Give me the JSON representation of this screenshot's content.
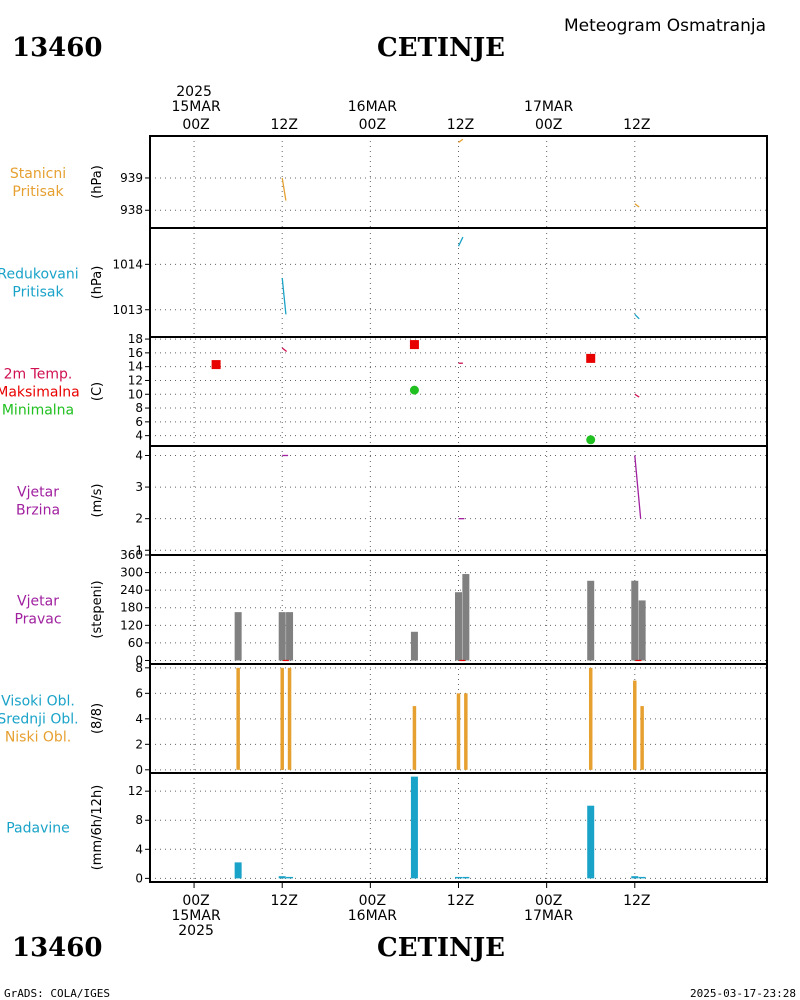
{
  "header": {
    "station_id": "13460",
    "station_name": "CETINJE",
    "product": "Meteogram Osmatranja"
  },
  "footer": {
    "credit": "GrADS: COLA/IGES",
    "timestamp": "2025-03-17-23:28"
  },
  "time_axis": {
    "range_hours": [
      -6,
      78
    ],
    "top_labels": [
      {
        "hour": 0,
        "lines": [
          "2025",
          "15MAR",
          "00Z"
        ]
      },
      {
        "hour": 12,
        "lines": [
          "12Z"
        ]
      },
      {
        "hour": 24,
        "lines": [
          "16MAR",
          "00Z"
        ]
      },
      {
        "hour": 36,
        "lines": [
          "12Z"
        ]
      },
      {
        "hour": 48,
        "lines": [
          "17MAR",
          "00Z"
        ]
      },
      {
        "hour": 60,
        "lines": [
          "12Z"
        ]
      }
    ],
    "bottom_labels": [
      {
        "hour": 0,
        "lines": [
          "00Z",
          "15MAR",
          "2025"
        ]
      },
      {
        "hour": 12,
        "lines": [
          "12Z"
        ]
      },
      {
        "hour": 24,
        "lines": [
          "00Z",
          "16MAR"
        ]
      },
      {
        "hour": 36,
        "lines": [
          "12Z"
        ]
      },
      {
        "hour": 48,
        "lines": [
          "00Z",
          "17MAR"
        ]
      },
      {
        "hour": 60,
        "lines": [
          "12Z"
        ]
      }
    ],
    "grid_hours": [
      0,
      12,
      24,
      36,
      48,
      60
    ]
  },
  "chart_data": [
    {
      "id": "station_pressure",
      "type": "line",
      "labels": [
        {
          "text": "Stanicni",
          "color": "#e6a030"
        },
        {
          "text": "Pritisak",
          "color": "#e6a030"
        }
      ],
      "ylabel": "(hPa)",
      "ylim": [
        937.45,
        940.3
      ],
      "yticks": [
        938,
        939
      ],
      "series": [
        {
          "color": "#e6a030",
          "points": [
            [
              12,
              939.0
            ],
            [
              12.5,
              938.3
            ]
          ]
        },
        {
          "color": "#e6a030",
          "points": [
            [
              36,
              940.1
            ],
            [
              36.6,
              940.2
            ]
          ]
        },
        {
          "color": "#e6a030",
          "points": [
            [
              60,
              938.2
            ],
            [
              60.6,
              938.1
            ]
          ]
        }
      ]
    },
    {
      "id": "reduced_pressure",
      "type": "line",
      "labels": [
        {
          "text": "Redukovani",
          "color": "#1aa3c8"
        },
        {
          "text": "Pritisak",
          "color": "#1aa3c8"
        }
      ],
      "ylabel": "(hPa)",
      "ylim": [
        1012.4,
        1014.8
      ],
      "yticks": [
        1013,
        1014
      ],
      "series": [
        {
          "color": "#1aa3c8",
          "points": [
            [
              12,
              1013.7
            ],
            [
              12.5,
              1012.9
            ]
          ]
        },
        {
          "color": "#1aa3c8",
          "points": [
            [
              36,
              1014.4
            ],
            [
              36.6,
              1014.6
            ]
          ]
        },
        {
          "color": "#1aa3c8",
          "points": [
            [
              60,
              1012.9
            ],
            [
              60.6,
              1012.8
            ]
          ]
        }
      ]
    },
    {
      "id": "temperature",
      "type": "scatter",
      "labels": [
        {
          "text": "2m Temp.",
          "color": "#d01050"
        },
        {
          "text": "Maksimalna",
          "color": "#e80000"
        },
        {
          "text": "Minimalna",
          "color": "#20c020"
        }
      ],
      "ylabel": "(C)",
      "ylim": [
        2.5,
        18.3
      ],
      "yticks": [
        4,
        6,
        8,
        10,
        12,
        14,
        16,
        18
      ],
      "temp_series": [
        {
          "color": "#d01050",
          "points": [
            [
              12,
              16.7
            ],
            [
              12.6,
              16.2
            ]
          ]
        },
        {
          "color": "#d01050",
          "points": [
            [
              36,
              14.5
            ],
            [
              36.6,
              14.5
            ]
          ]
        },
        {
          "color": "#d01050",
          "points": [
            [
              60,
              10.0
            ],
            [
              60.6,
              9.6
            ]
          ]
        }
      ],
      "max_points": [
        [
          3,
          14.3
        ],
        [
          30,
          17.2
        ],
        [
          54,
          15.2
        ]
      ],
      "max_color": "#e80000",
      "min_points": [
        [
          30,
          10.6
        ],
        [
          54,
          3.4
        ]
      ],
      "min_color": "#20c020"
    },
    {
      "id": "wind_speed",
      "type": "line",
      "labels": [
        {
          "text": "Vjetar",
          "color": "#a020a0"
        },
        {
          "text": "Brzina",
          "color": "#a020a0"
        }
      ],
      "ylabel": "(m/s)",
      "ylim": [
        0.85,
        4.3
      ],
      "yticks": [
        1,
        2,
        3,
        4
      ],
      "series": [
        {
          "color": "#a020a0",
          "points": [
            [
              12,
              4.0
            ],
            [
              12.8,
              4.0
            ]
          ]
        },
        {
          "color": "#a020a0",
          "points": [
            [
              36,
              2.0
            ],
            [
              36.8,
              2.0
            ]
          ]
        },
        {
          "color": "#a020a0",
          "points": [
            [
              60,
              4.0
            ],
            [
              60.8,
              2.0
            ]
          ]
        }
      ]
    },
    {
      "id": "wind_direction",
      "type": "bar",
      "labels": [
        {
          "text": "Vjetar",
          "color": "#a020a0"
        },
        {
          "text": "Pravac",
          "color": "#a020a0"
        }
      ],
      "ylabel": "(stepeni)",
      "ylim": [
        -12,
        360
      ],
      "yticks": [
        0,
        60,
        120,
        180,
        240,
        300,
        360
      ],
      "bar_color": "#808080",
      "bars": [
        [
          6,
          165
        ],
        [
          12,
          165
        ],
        [
          13,
          165
        ],
        [
          30,
          98
        ],
        [
          36,
          233
        ],
        [
          37,
          295
        ],
        [
          54,
          272
        ],
        [
          60,
          272
        ],
        [
          61,
          205
        ]
      ],
      "red_ticks": [
        12.5,
        36.5,
        60.5
      ]
    },
    {
      "id": "cloud_cover",
      "type": "bar",
      "labels": [
        {
          "text": "Visoki Obl.",
          "color": "#1aa3c8"
        },
        {
          "text": "Srednji Obl.",
          "color": "#1aa3c8"
        },
        {
          "text": "Niski Obl.",
          "color": "#e6a030"
        }
      ],
      "ylabel": "(8/8)",
      "ylim": [
        -0.25,
        8.3
      ],
      "yticks": [
        0,
        2,
        4,
        6,
        8
      ],
      "bar_color": "#e6a030",
      "bars": [
        [
          6,
          8
        ],
        [
          12,
          8
        ],
        [
          13,
          8
        ],
        [
          30,
          5
        ],
        [
          36,
          6
        ],
        [
          37,
          6
        ],
        [
          54,
          8
        ],
        [
          60,
          7
        ],
        [
          61,
          5
        ]
      ]
    },
    {
      "id": "precipitation",
      "type": "bar",
      "labels": [
        {
          "text": "Padavine",
          "color": "#1aa3c8"
        }
      ],
      "ylabel": "(mm/6h/12h)",
      "ylim": [
        -0.5,
        14.5
      ],
      "yticks": [
        0,
        4,
        8,
        12
      ],
      "bar_color": "#1aa3c8",
      "bars": [
        [
          6,
          2.2
        ],
        [
          12,
          0.3
        ],
        [
          13,
          0.2
        ],
        [
          30,
          14
        ],
        [
          36,
          0.2
        ],
        [
          37,
          0.2
        ],
        [
          54,
          10
        ],
        [
          60,
          0.3
        ],
        [
          61,
          0.2
        ]
      ]
    }
  ]
}
